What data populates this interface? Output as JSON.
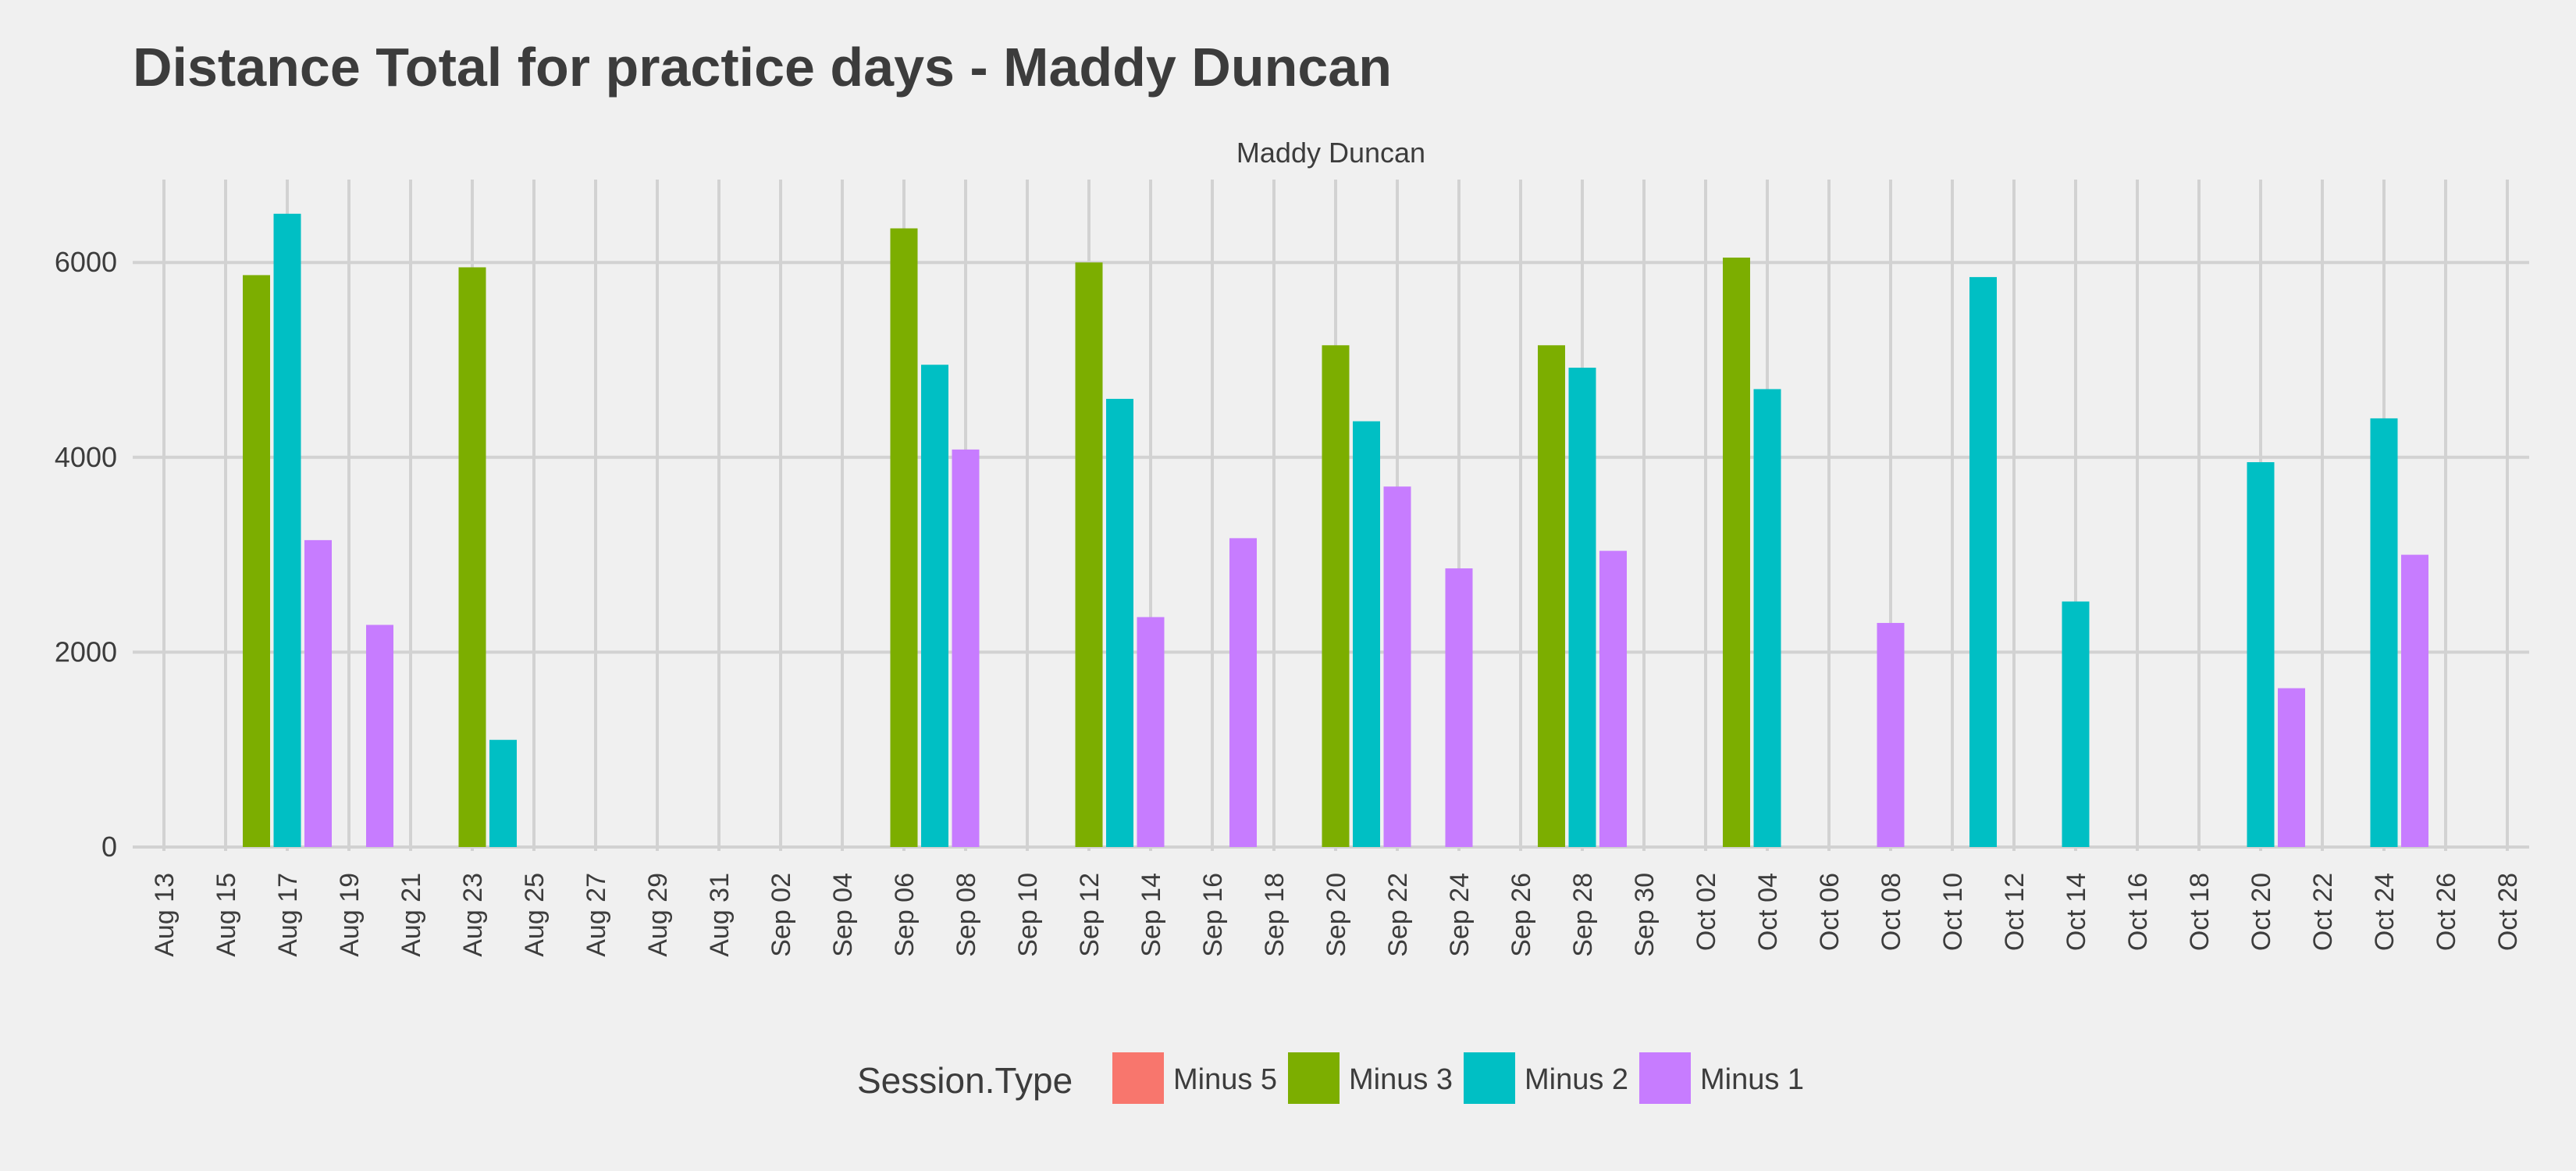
{
  "chart_data": {
    "type": "bar",
    "title": "Distance Total for practice days -  Maddy Duncan",
    "facet_label": "Maddy Duncan",
    "xlabel": "",
    "ylabel": "",
    "ylim": [
      0,
      7000
    ],
    "y_ticks": [
      0,
      2000,
      4000,
      6000
    ],
    "x_ticks": [
      "Aug 13",
      "Aug 15",
      "Aug 17",
      "Aug 19",
      "Aug 21",
      "Aug 23",
      "Aug 25",
      "Aug 27",
      "Aug 29",
      "Aug 31",
      "Sep 02",
      "Sep 04",
      "Sep 06",
      "Sep 08",
      "Sep 10",
      "Sep 12",
      "Sep 14",
      "Sep 16",
      "Sep 18",
      "Sep 20",
      "Sep 22",
      "Sep 24",
      "Sep 26",
      "Sep 28",
      "Sep 30",
      "Oct 02",
      "Oct 04",
      "Oct 06",
      "Oct 08",
      "Oct 10",
      "Oct 12",
      "Oct 14",
      "Oct 16",
      "Oct 18",
      "Oct 20",
      "Oct 22",
      "Oct 24",
      "Oct 26",
      "Oct 28"
    ],
    "x_domain": [
      "Aug 13",
      "Oct 28"
    ],
    "grid": true,
    "legend": {
      "title": "Session.Type",
      "position": "bottom",
      "entries": [
        {
          "name": "Minus 5",
          "color": "#f8766d"
        },
        {
          "name": "Minus 3",
          "color": "#7cae00"
        },
        {
          "name": "Minus 2",
          "color": "#00bfc4"
        },
        {
          "name": "Minus 1",
          "color": "#c77cff"
        }
      ]
    },
    "series": [
      {
        "name": "Minus 5",
        "color": "#f8766d",
        "points": []
      },
      {
        "name": "Minus 3",
        "color": "#7cae00",
        "points": [
          {
            "x": "Aug 16",
            "y": 5870
          },
          {
            "x": "Aug 23",
            "y": 5950
          },
          {
            "x": "Sep 06",
            "y": 6350
          },
          {
            "x": "Sep 12",
            "y": 6000
          },
          {
            "x": "Sep 20",
            "y": 5150
          },
          {
            "x": "Sep 27",
            "y": 5150
          },
          {
            "x": "Oct 03",
            "y": 6050
          }
        ]
      },
      {
        "name": "Minus 2",
        "color": "#00bfc4",
        "points": [
          {
            "x": "Aug 17",
            "y": 6500
          },
          {
            "x": "Aug 24",
            "y": 1100
          },
          {
            "x": "Sep 07",
            "y": 4950
          },
          {
            "x": "Sep 13",
            "y": 4600
          },
          {
            "x": "Sep 21",
            "y": 4370
          },
          {
            "x": "Sep 28",
            "y": 4920
          },
          {
            "x": "Oct 04",
            "y": 4700
          },
          {
            "x": "Oct 11",
            "y": 5850
          },
          {
            "x": "Oct 14",
            "y": 2520
          },
          {
            "x": "Oct 20",
            "y": 3950
          },
          {
            "x": "Oct 24",
            "y": 4400
          }
        ]
      },
      {
        "name": "Minus 1",
        "color": "#c77cff",
        "points": [
          {
            "x": "Aug 18",
            "y": 3150
          },
          {
            "x": "Aug 20",
            "y": 2280
          },
          {
            "x": "Sep 08",
            "y": 4080
          },
          {
            "x": "Sep 14",
            "y": 2360
          },
          {
            "x": "Sep 17",
            "y": 3170
          },
          {
            "x": "Sep 22",
            "y": 3700
          },
          {
            "x": "Sep 24",
            "y": 2860
          },
          {
            "x": "Sep 29",
            "y": 3040
          },
          {
            "x": "Oct 08",
            "y": 2300
          },
          {
            "x": "Oct 21",
            "y": 1630
          },
          {
            "x": "Oct 25",
            "y": 3000
          }
        ]
      }
    ]
  }
}
